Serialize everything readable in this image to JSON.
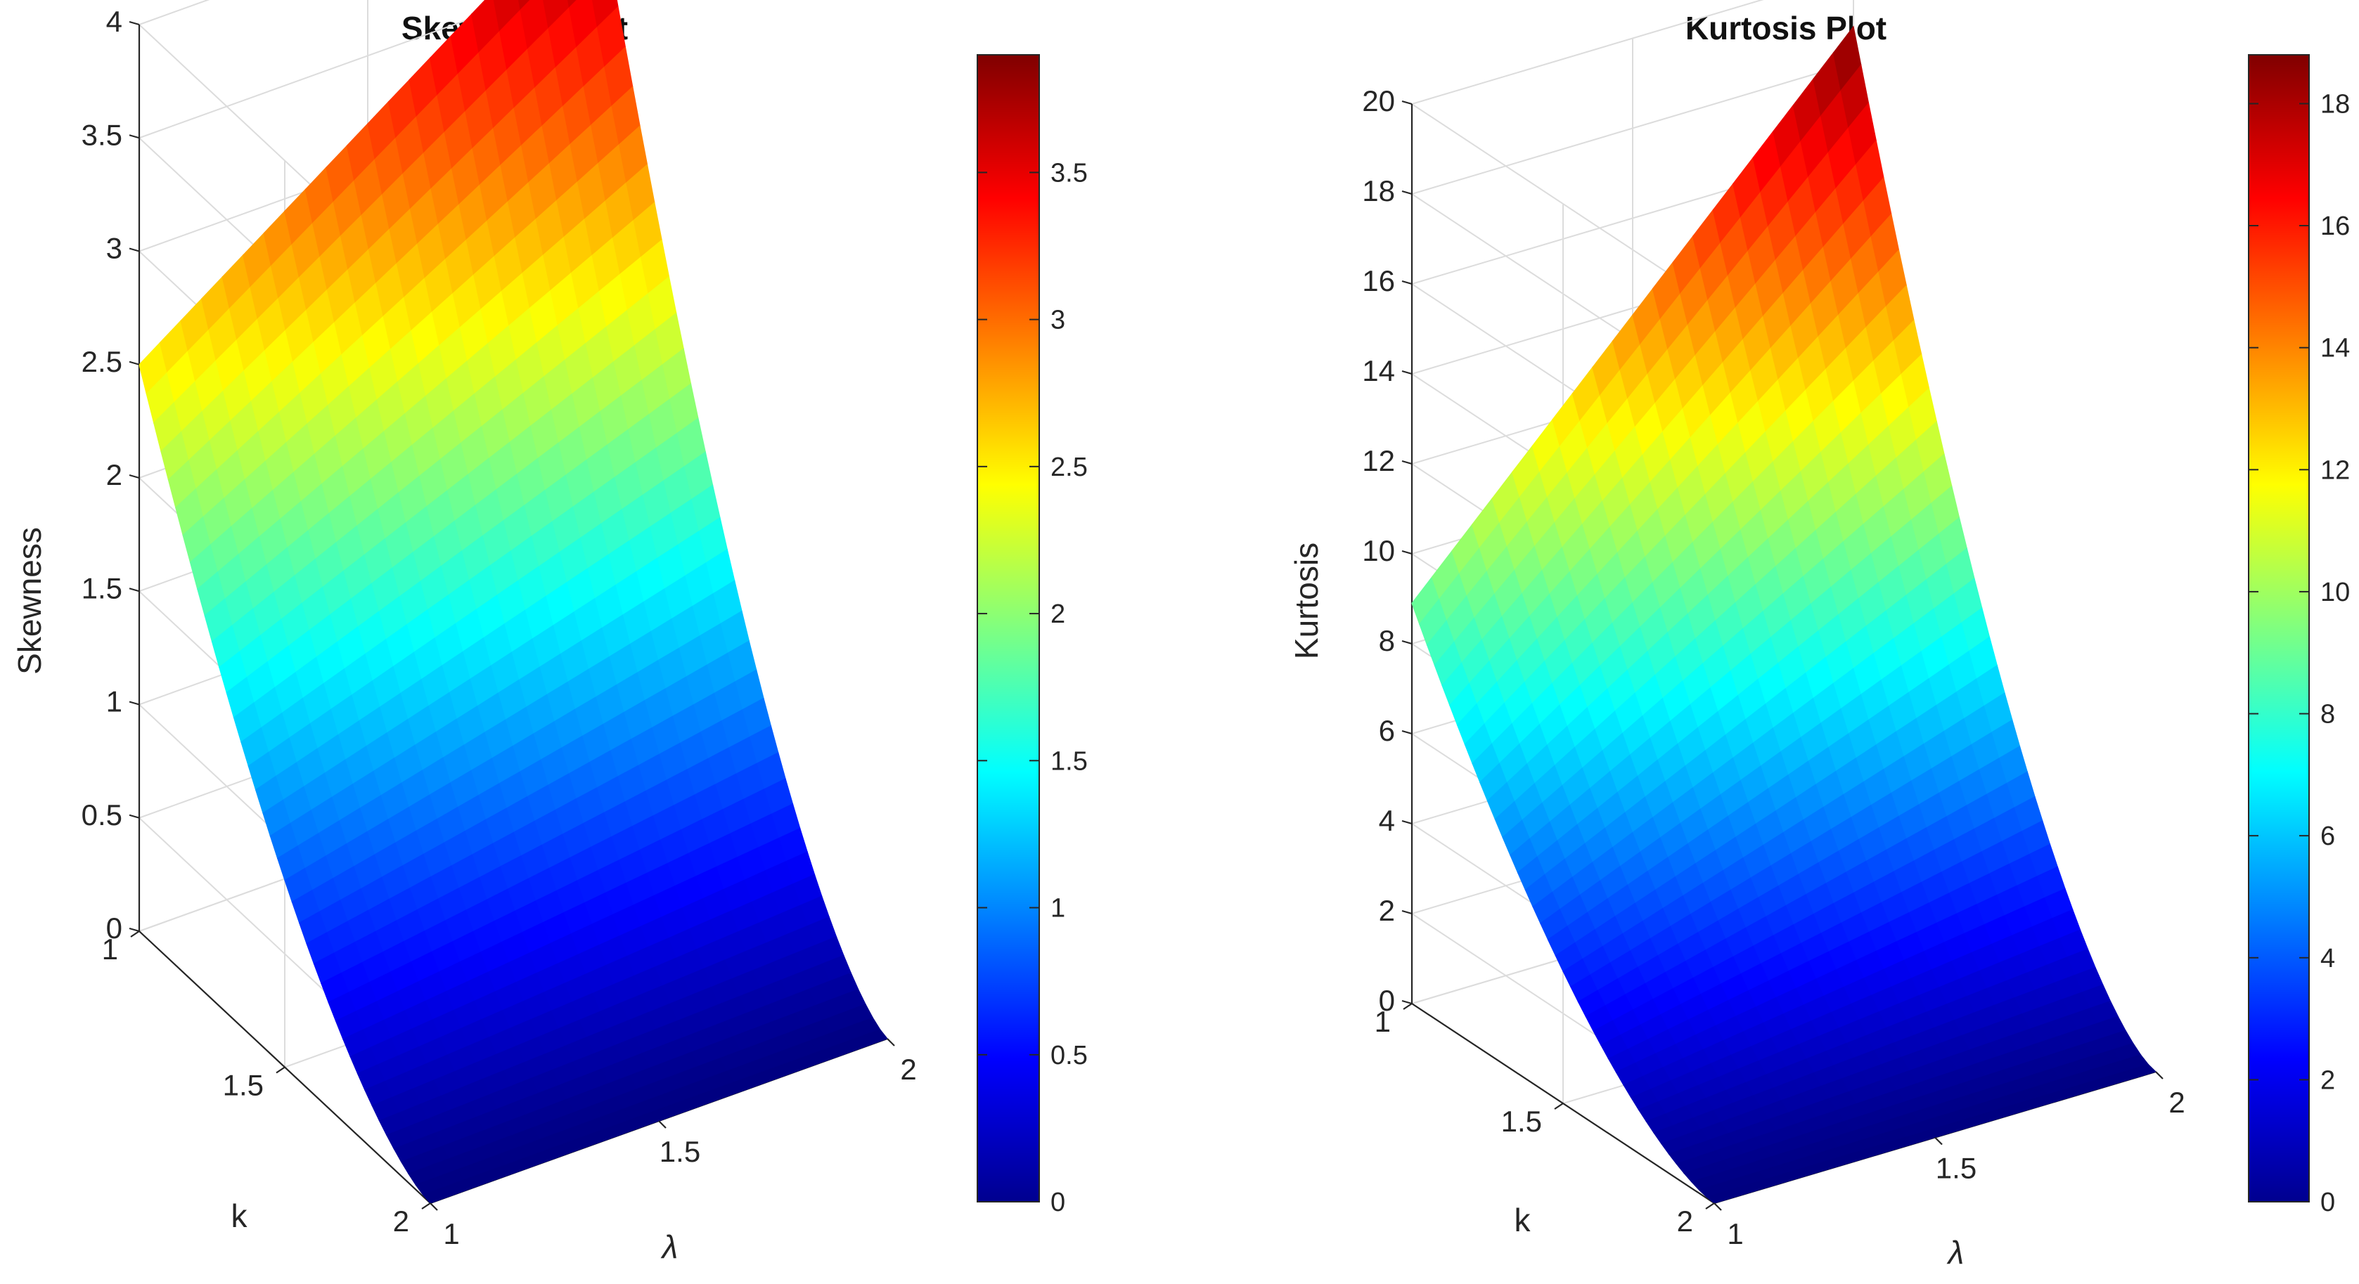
{
  "chart_data": [
    {
      "type": "surface",
      "title": "Skewness Plot",
      "xlabel": "λ",
      "ylabel": "k",
      "zlabel": "Skewness",
      "x_ticks": [
        "1",
        "1.5",
        "2"
      ],
      "y_ticks": [
        "1",
        "1.5",
        "2"
      ],
      "z_ticks": [
        "0",
        "0.5",
        "1",
        "1.5",
        "2",
        "2.5",
        "3",
        "3.5",
        "4"
      ],
      "xlim": [
        1,
        2
      ],
      "ylim": [
        1,
        2
      ],
      "zlim": [
        0,
        4
      ],
      "corners": [
        {
          "lambda": 1,
          "k": 1,
          "value": 2.5
        },
        {
          "lambda": 2,
          "k": 1,
          "value": 3.9
        },
        {
          "lambda": 1,
          "k": 2,
          "value": 0
        },
        {
          "lambda": 2,
          "k": 2,
          "value": 0
        }
      ],
      "colormap": "jet",
      "colorbar": {
        "range": [
          0,
          3.9
        ],
        "ticks": [
          "0",
          "0.5",
          "1",
          "1.5",
          "2",
          "2.5",
          "3",
          "3.5"
        ]
      },
      "grid": true
    },
    {
      "type": "surface",
      "title": "Kurtosis Plot",
      "xlabel": "λ",
      "ylabel": "k",
      "zlabel": "Kurtosis",
      "x_ticks": [
        "1",
        "1.5",
        "2"
      ],
      "y_ticks": [
        "1",
        "1.5",
        "2"
      ],
      "z_ticks": [
        "0",
        "2",
        "4",
        "6",
        "8",
        "10",
        "12",
        "14",
        "16",
        "18",
        "20"
      ],
      "xlim": [
        1,
        2
      ],
      "ylim": [
        1,
        2
      ],
      "zlim": [
        0,
        20
      ],
      "corners": [
        {
          "lambda": 1,
          "k": 1,
          "value": 8.9
        },
        {
          "lambda": 2,
          "k": 1,
          "value": 18.8
        },
        {
          "lambda": 1,
          "k": 2,
          "value": 0
        },
        {
          "lambda": 2,
          "k": 2,
          "value": 0
        }
      ],
      "colormap": "jet",
      "colorbar": {
        "range": [
          0,
          18.8
        ],
        "ticks": [
          "0",
          "2",
          "4",
          "6",
          "8",
          "10",
          "12",
          "14",
          "16",
          "18"
        ]
      },
      "grid": true
    }
  ]
}
